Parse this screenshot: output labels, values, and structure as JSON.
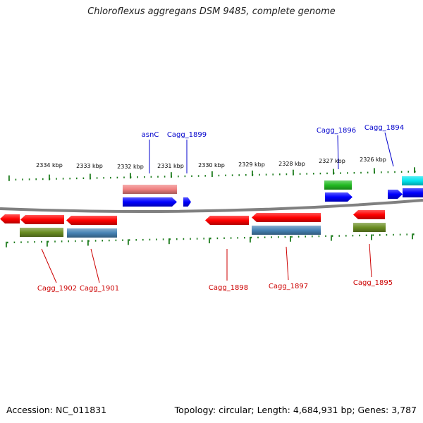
{
  "title": "Chloroflexus aggregans DSM 9485, complete genome",
  "footer": {
    "accession": "Accession: NC_011831",
    "summary": "Topology: circular; Length: 4,684,931 bp; Genes: 3,787"
  },
  "colors": {
    "backbone": "#808080",
    "tick": "#1a7a1a",
    "label_plus": "#0000cc",
    "label_minus": "#cc0000",
    "cds_plus": "#0000ff",
    "cds_minus": "#ff0000",
    "rna_plus": "#f08080",
    "other_plus": "#22bb22",
    "other_plus2": "#00e5ee",
    "feature_minus_olive": "#6b8e23",
    "feature_minus_steel": "#4682b4"
  },
  "tick_labels": [
    "2334 kbp",
    "2333 kbp",
    "2332 kbp",
    "2331 kbp",
    "2330 kbp",
    "2329 kbp",
    "2328 kbp",
    "2327 kbp",
    "2326 kbp"
  ],
  "gene_labels_top": [
    "asnC",
    "Cagg_1899",
    "Cagg_1896",
    "Cagg_1894"
  ],
  "gene_labels_bottom": [
    "Cagg_1902",
    "Cagg_1901",
    "Cagg_1898",
    "Cagg_1897",
    "Cagg_1895"
  ]
}
